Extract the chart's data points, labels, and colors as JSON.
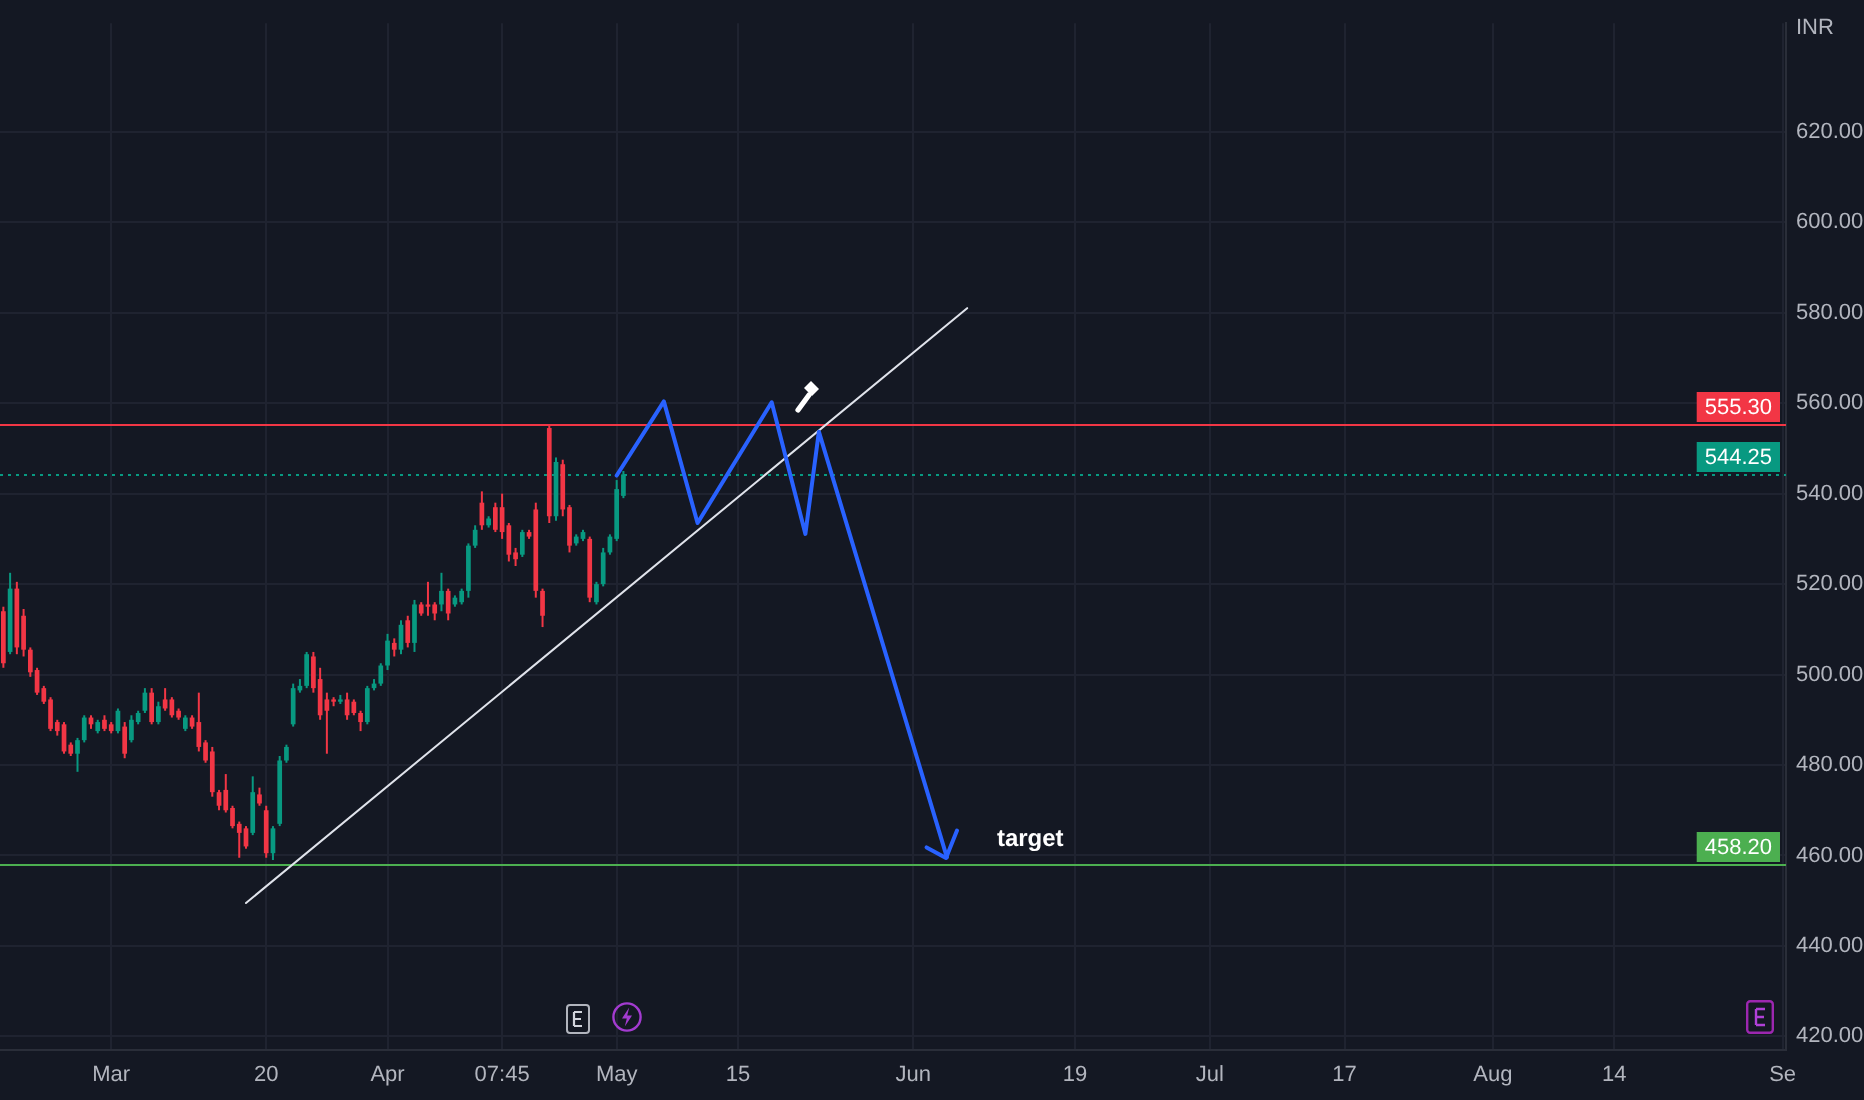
{
  "chart_data": {
    "type": "candlestick",
    "ylabel": "INR",
    "categories": [
      null,
      null,
      null,
      null,
      null,
      null,
      null,
      null,
      null,
      null,
      null,
      null,
      null,
      null,
      null,
      null,
      "Mar",
      null,
      null,
      null,
      null,
      null,
      null,
      null,
      null,
      null,
      null,
      null,
      null,
      null,
      null,
      null,
      null,
      null,
      null,
      null,
      null,
      null,
      null,
      "20",
      null,
      null,
      null,
      null,
      null,
      null,
      null,
      null,
      null,
      null,
      null,
      null,
      null,
      null,
      null,
      null,
      null,
      "Apr",
      null,
      null,
      null,
      null,
      null,
      null,
      null,
      null,
      null,
      null,
      null,
      null,
      null,
      null,
      null,
      null,
      "07:45",
      null,
      null,
      null,
      null,
      null,
      null,
      null,
      null,
      null,
      null,
      null,
      null,
      null,
      null,
      null,
      null,
      "May",
      null,
      null,
      null,
      null,
      null,
      null,
      null,
      null,
      null,
      null,
      null,
      null,
      null,
      null,
      null,
      null,
      null,
      "15",
      null,
      null,
      null,
      null,
      null,
      null,
      null,
      null,
      null,
      null,
      null,
      null,
      null,
      null,
      null,
      null,
      null,
      null,
      null,
      null,
      null,
      null,
      null,
      null,
      null,
      "Jun",
      null,
      null,
      null,
      null,
      null,
      null,
      null,
      null,
      null,
      null,
      null,
      null,
      null,
      null,
      null,
      null,
      null,
      null,
      null,
      null,
      null,
      null,
      null,
      "19",
      null,
      null,
      null,
      null,
      null,
      null,
      null,
      null,
      null,
      null,
      null,
      null,
      null,
      null,
      null,
      null,
      null,
      null,
      null,
      "Jul",
      null,
      null,
      null,
      null,
      null,
      null,
      null,
      null,
      null,
      null,
      null,
      null,
      null,
      null,
      null,
      null,
      null,
      null,
      null,
      "17",
      null,
      null,
      null,
      null,
      null,
      null,
      null,
      null,
      null,
      null,
      null,
      null,
      null,
      null,
      null,
      null,
      null,
      null,
      null,
      null,
      null,
      "Aug",
      null,
      null,
      null,
      null,
      null,
      null,
      null,
      null,
      null,
      null,
      null,
      null,
      null,
      null,
      null,
      null,
      null,
      "14",
      null,
      null,
      null,
      null,
      null,
      null,
      null,
      null,
      null,
      null,
      null,
      null,
      null,
      null,
      null,
      null,
      null,
      null,
      null,
      null,
      null,
      null,
      null,
      null,
      "Se"
    ],
    "ohlc": [
      [
        514,
        515,
        501.5,
        502.5
      ],
      [
        505,
        522.5,
        504.5,
        519
      ],
      [
        519,
        520.5,
        504.5,
        506
      ],
      [
        513,
        514.5,
        504,
        505.5
      ],
      [
        505.5,
        506,
        499.5,
        500.5
      ],
      [
        501,
        501.5,
        495.5,
        496
      ],
      [
        497,
        497.5,
        493.5,
        494
      ],
      [
        494.5,
        495,
        487.5,
        488
      ],
      [
        489.5,
        490,
        486.5,
        487.5
      ],
      [
        489,
        489.5,
        482.5,
        483
      ],
      [
        484.5,
        485,
        482,
        482.5
      ],
      [
        482.5,
        486,
        478.5,
        485.5
      ],
      [
        485.5,
        491,
        485,
        490.5
      ],
      [
        490.5,
        491,
        488,
        489
      ],
      [
        487.5,
        490,
        487,
        489.5
      ],
      [
        490,
        491,
        487.5,
        488
      ],
      [
        489,
        489.5,
        487,
        487.5
      ],
      [
        487.5,
        492.5,
        487,
        492
      ],
      [
        488.5,
        489.5,
        481.5,
        482.5
      ],
      [
        485.5,
        491,
        485,
        490
      ],
      [
        489.5,
        492,
        489,
        491.5
      ],
      [
        492,
        497,
        491.5,
        496
      ],
      [
        496,
        497,
        489,
        489.5
      ],
      [
        489.5,
        494,
        489,
        493
      ],
      [
        494.5,
        497,
        492,
        492.5
      ],
      [
        494.5,
        495,
        490.5,
        491
      ],
      [
        492,
        492.5,
        490,
        490.5
      ],
      [
        488,
        491,
        487.5,
        490.5
      ],
      [
        490.5,
        491,
        488,
        488.5
      ],
      [
        489.5,
        496,
        483,
        484
      ],
      [
        485,
        485.5,
        480.5,
        481
      ],
      [
        483,
        484,
        473,
        474
      ],
      [
        474,
        474.5,
        470,
        471
      ],
      [
        474.5,
        478,
        469.5,
        470
      ],
      [
        470.5,
        471,
        466,
        466.5
      ],
      [
        467,
        467.5,
        459.5,
        465
      ],
      [
        466,
        466.5,
        461.5,
        462
      ],
      [
        465,
        477.5,
        464.5,
        474
      ],
      [
        473.5,
        475,
        471,
        471.5
      ],
      [
        470,
        471,
        459.5,
        460.5
      ],
      [
        460.5,
        466.5,
        459,
        466
      ],
      [
        467,
        482,
        466.5,
        481
      ],
      [
        481,
        484.5,
        480.5,
        484
      ],
      [
        489,
        498,
        488.5,
        497
      ],
      [
        496.5,
        499,
        496,
        497.5
      ],
      [
        497.5,
        505,
        497,
        504.5
      ],
      [
        504,
        505,
        496,
        497
      ],
      [
        499,
        501.5,
        490,
        491
      ],
      [
        494.5,
        496,
        482.5,
        492
      ],
      [
        494.5,
        495,
        493,
        494
      ],
      [
        494,
        495.5,
        493.5,
        494.5
      ],
      [
        494.5,
        496,
        490,
        491
      ],
      [
        494,
        494.5,
        491,
        491.5
      ],
      [
        491.5,
        492,
        487.5,
        489.5
      ],
      [
        489.5,
        497.5,
        489,
        497
      ],
      [
        497,
        499,
        496.5,
        498
      ],
      [
        498,
        502.5,
        497.5,
        502
      ],
      [
        502,
        509,
        501,
        507.5
      ],
      [
        507,
        508,
        504,
        505.5
      ],
      [
        505.5,
        512,
        504.5,
        511
      ],
      [
        512,
        513,
        506,
        507
      ],
      [
        507,
        516.5,
        505,
        515.5
      ],
      [
        515.5,
        516,
        513,
        513.5
      ],
      [
        515.5,
        520.5,
        513,
        515
      ],
      [
        515.5,
        516,
        512,
        513.5
      ],
      [
        515.5,
        522.5,
        514,
        518.5
      ],
      [
        518.5,
        519,
        512,
        513.5
      ],
      [
        515.5,
        517.5,
        515,
        517
      ],
      [
        516,
        519,
        515.5,
        518.5
      ],
      [
        518.5,
        529,
        517,
        528.5
      ],
      [
        528.5,
        533,
        528,
        532
      ],
      [
        538,
        540.5,
        532,
        533
      ],
      [
        533,
        535,
        532.5,
        534.5
      ],
      [
        537,
        538,
        531.5,
        532
      ],
      [
        537,
        540,
        530,
        531.5
      ],
      [
        533,
        533.5,
        525,
        526.5
      ],
      [
        527,
        528,
        524,
        525.5
      ],
      [
        526.5,
        532,
        526,
        531.5
      ],
      [
        531.5,
        532,
        530,
        530.5
      ],
      [
        536.5,
        538,
        517,
        518.5
      ],
      [
        518.5,
        519,
        510.5,
        513
      ],
      [
        554.5,
        555.3,
        533.5,
        535
      ],
      [
        535,
        548,
        534,
        547
      ],
      [
        546.5,
        547.5,
        535,
        536.5
      ],
      [
        537,
        537.5,
        527,
        528.5
      ],
      [
        529,
        531,
        528.5,
        530.5
      ],
      [
        530,
        532,
        529.5,
        531.5
      ],
      [
        530,
        530.5,
        516,
        517
      ],
      [
        516,
        520.5,
        515.5,
        520
      ],
      [
        520,
        528,
        519.5,
        527
      ],
      [
        527,
        531,
        526.5,
        530.5
      ],
      [
        530,
        543,
        529.5,
        541
      ],
      [
        539.5,
        545,
        539,
        544.25
      ],
      null,
      null,
      null,
      null,
      null,
      null,
      null,
      null,
      null,
      null,
      null,
      null,
      null,
      null,
      null,
      null,
      null,
      null,
      null,
      null,
      null,
      null,
      null,
      null,
      null,
      null,
      null,
      null,
      null,
      null,
      null,
      null,
      null,
      null,
      null,
      null,
      null,
      null,
      null,
      null,
      null,
      null,
      null,
      null,
      null,
      null,
      null,
      null,
      null,
      null,
      null,
      null,
      null,
      null,
      null,
      null,
      null,
      null,
      null,
      null,
      null,
      null,
      null,
      null,
      null,
      null,
      null,
      null,
      null,
      null,
      null,
      null,
      null,
      null,
      null,
      null,
      null,
      null,
      null,
      null,
      null,
      null,
      null,
      null,
      null,
      null,
      null,
      null,
      null,
      null,
      null,
      null,
      null,
      null,
      null,
      null,
      null,
      null,
      null,
      null,
      null,
      null,
      null,
      null,
      null,
      null,
      null,
      null,
      null,
      null,
      null,
      null,
      null,
      null,
      null,
      null,
      null,
      null,
      null,
      null,
      null,
      null,
      null,
      null,
      null,
      null,
      null,
      null,
      null,
      null,
      null,
      null,
      null,
      null,
      null,
      null,
      null,
      null,
      null,
      null,
      null,
      null,
      null,
      null,
      null,
      null,
      null,
      null,
      null,
      null,
      null,
      null,
      null,
      null,
      null,
      null,
      null,
      null,
      null,
      null,
      null,
      null,
      null,
      null,
      null,
      null,
      null,
      null,
      null,
      null,
      null,
      null
    ],
    "colors": [
      "#f23645",
      "#089981",
      "#f23645",
      "#f23645",
      "#f23645",
      "#f23645",
      "#f23645",
      "#f23645",
      "#f23645",
      "#f23645",
      "#f23645",
      "#089981",
      "#089981",
      "#f23645",
      "#089981",
      "#f23645",
      "#f23645",
      "#089981",
      "#f23645",
      "#089981",
      "#089981",
      "#089981",
      "#f23645",
      "#089981",
      "#f23645",
      "#f23645",
      "#f23645",
      "#089981",
      "#f23645",
      "#f23645",
      "#f23645",
      "#f23645",
      "#f23645",
      "#f23645",
      "#f23645",
      "#f23645",
      "#f23645",
      "#089981",
      "#f23645",
      "#f23645",
      "#089981",
      "#089981",
      "#089981",
      "#089981",
      "#089981",
      "#089981",
      "#f23645",
      "#f23645",
      "#f23645",
      "#f23645",
      "#089981",
      "#f23645",
      "#f23645",
      "#f23645",
      "#089981",
      "#089981",
      "#089981",
      "#089981",
      "#f23645",
      "#089981",
      "#f23645",
      "#089981",
      "#f23645",
      "#f23645",
      "#f23645",
      "#089981",
      "#f23645",
      "#089981",
      "#089981",
      "#089981",
      "#089981",
      "#f23645",
      "#089981",
      "#f23645",
      "#f23645",
      "#f23645",
      "#f23645",
      "#089981",
      "#f23645",
      "#f23645",
      "#f23645",
      "#f23645",
      "#089981",
      "#f23645",
      "#f23645",
      "#089981",
      "#089981",
      "#f23645",
      "#089981",
      "#089981",
      "#089981",
      "#089981",
      "#089981",
      null,
      null,
      null,
      null,
      null,
      null,
      null,
      null,
      null,
      null,
      null,
      null,
      null,
      null,
      null,
      null,
      null,
      null,
      null,
      null,
      null,
      null,
      null,
      null,
      null,
      null,
      null,
      null,
      null,
      null,
      null,
      null,
      null,
      null,
      null,
      null,
      null,
      null,
      null,
      null,
      null,
      null,
      null,
      null,
      null,
      null,
      null,
      null,
      null,
      null,
      null,
      null,
      null,
      null,
      null,
      null,
      null,
      null,
      null,
      null,
      null,
      null,
      null,
      null,
      null,
      null,
      null,
      null,
      null,
      null,
      null,
      null,
      null,
      null,
      null,
      null,
      null,
      null,
      null,
      null,
      null,
      null,
      null,
      null,
      null,
      null,
      null,
      null,
      null,
      null,
      null,
      null,
      null,
      null,
      null,
      null,
      null,
      null,
      null,
      null,
      null,
      null,
      null,
      null,
      null,
      null,
      null,
      null,
      null,
      null,
      null,
      null,
      null,
      null,
      null,
      null,
      null,
      null,
      null,
      null,
      null,
      null,
      null,
      null,
      null,
      null,
      null,
      null,
      null,
      null,
      null,
      null,
      null,
      null,
      null,
      null,
      null,
      null,
      null,
      null,
      null,
      null,
      null,
      null,
      null,
      null,
      null,
      null,
      null,
      null,
      null,
      null,
      null,
      null,
      null,
      null,
      null,
      null,
      null,
      null,
      null,
      null,
      null,
      null,
      null,
      null,
      null,
      null,
      null,
      null,
      null,
      null
    ],
    "series": [
      {
        "type": "line",
        "color": "#2962ff",
        "values": [
          null,
          null,
          null,
          null,
          null,
          null,
          null,
          null,
          null,
          null,
          null,
          null,
          null,
          null,
          null,
          null,
          null,
          null,
          null,
          null,
          null,
          null,
          null,
          null,
          null,
          null,
          null,
          null,
          null,
          null,
          null,
          null,
          null,
          null,
          null,
          null,
          null,
          null,
          null,
          null,
          null,
          null,
          null,
          null,
          null,
          null,
          null,
          null,
          null,
          null,
          null,
          null,
          null,
          null,
          null,
          null,
          null,
          null,
          null,
          null,
          null,
          null,
          null,
          null,
          null,
          null,
          null,
          null,
          null,
          null,
          null,
          null,
          null,
          null,
          null,
          null,
          null,
          null,
          null,
          null,
          null,
          null,
          null,
          null,
          null,
          null,
          null,
          null,
          null,
          null,
          null,
          544,
          null,
          null,
          null,
          null,
          null,
          null,
          560.4,
          null,
          null,
          null,
          null,
          533.5,
          null,
          null,
          null,
          null,
          null,
          null,
          null,
          null,
          null,
          null,
          560.2,
          null,
          null,
          null,
          null,
          531.1,
          null,
          553.7,
          null,
          null,
          null,
          null,
          null,
          null,
          null,
          null,
          null,
          null,
          null,
          null,
          null,
          null,
          null,
          null,
          null,
          null,
          459.6,
          null,
          null,
          null,
          null,
          null,
          null,
          null,
          null,
          null,
          null,
          null,
          null,
          null,
          null,
          null,
          null,
          null,
          null,
          null,
          null,
          null,
          null,
          null,
          null,
          null,
          null,
          null,
          null,
          null,
          null,
          null,
          null,
          null,
          null,
          null,
          null,
          null,
          null,
          null,
          null,
          null,
          null,
          null,
          null,
          null,
          null,
          null,
          null,
          null,
          null,
          null,
          null,
          null,
          null,
          null,
          null,
          null,
          null,
          null,
          null,
          null,
          null,
          null,
          null,
          null,
          null,
          null,
          null,
          null,
          null,
          null,
          null,
          null,
          null,
          null,
          null,
          null,
          null,
          null,
          null,
          null,
          null,
          null,
          null,
          null,
          null,
          null,
          null,
          null,
          null,
          null,
          null,
          null,
          null,
          null,
          null,
          null,
          null,
          null,
          null,
          null,
          null,
          null,
          null,
          null,
          null,
          null,
          null,
          null,
          null,
          null,
          null,
          null,
          null,
          null,
          null,
          null,
          null,
          null,
          null,
          null,
          null,
          null,
          null
        ]
      },
      {
        "type": "line",
        "color": "#e0e3eb",
        "values": [
          null,
          null,
          null,
          null,
          null,
          null,
          null,
          null,
          null,
          null,
          null,
          null,
          null,
          null,
          null,
          null,
          null,
          null,
          null,
          null,
          null,
          null,
          null,
          null,
          null,
          null,
          null,
          null,
          null,
          null,
          null,
          null,
          null,
          null,
          null,
          null,
          449.5,
          null,
          null,
          null,
          null,
          null,
          null,
          null,
          null,
          null,
          null,
          null,
          null,
          null,
          null,
          null,
          null,
          null,
          null,
          null,
          null,
          null,
          null,
          null,
          null,
          null,
          null,
          null,
          null,
          null,
          null,
          null,
          null,
          null,
          null,
          null,
          null,
          null,
          null,
          null,
          null,
          null,
          null,
          null,
          null,
          null,
          null,
          null,
          null,
          null,
          null,
          null,
          null,
          null,
          null,
          null,
          null,
          null,
          null,
          null,
          null,
          null,
          null,
          null,
          null,
          null,
          null,
          null,
          null,
          null,
          null,
          null,
          null,
          null,
          null,
          null,
          null,
          null,
          null,
          null,
          null,
          null,
          null,
          null,
          null,
          null,
          null,
          null,
          null,
          null,
          null,
          null,
          null,
          null,
          null,
          null,
          null,
          null,
          null,
          null,
          null,
          null,
          null,
          null,
          null,
          null,
          null,
          581,
          null,
          null,
          null,
          null,
          null,
          null,
          null,
          null,
          null,
          null,
          null,
          null,
          null,
          null,
          null,
          null,
          null,
          null,
          null,
          null,
          null,
          null,
          null,
          null,
          null,
          null,
          null,
          null,
          null,
          null,
          null,
          null,
          null,
          null,
          null,
          null,
          null,
          null,
          null,
          null,
          null,
          null,
          null,
          null,
          null,
          null,
          null,
          null,
          null,
          null,
          null,
          null,
          null,
          null,
          null,
          null,
          null,
          null,
          null,
          null,
          null,
          null,
          null,
          null,
          null,
          null,
          null,
          null,
          null,
          null,
          null,
          null,
          null,
          null,
          null,
          null,
          null,
          null,
          null,
          null,
          null,
          null,
          null,
          null,
          null,
          null,
          null,
          null,
          null,
          null,
          null,
          null,
          null,
          null,
          null,
          null,
          null,
          null,
          null,
          null,
          null,
          null,
          null,
          null,
          null,
          null,
          null,
          null,
          null,
          null,
          null,
          null,
          null,
          null,
          null,
          null,
          null,
          null,
          null,
          null,
          null
        ]
      }
    ],
    "ref_lines": [
      {
        "axis": "y",
        "value": 555.3,
        "label": "555.30",
        "color": "#f23645"
      },
      {
        "axis": "y",
        "value": 544.25,
        "label": "544.25",
        "color": "#089981",
        "line_style": "dotted"
      },
      {
        "axis": "y",
        "value": 458.2,
        "label": "458.20",
        "color": "#4caf50"
      }
    ],
    "annotations": [
      "target"
    ],
    "ylim": [
      417,
      644
    ],
    "yticks": [
      {
        "value": 420,
        "label": "420.00"
      },
      {
        "value": 440,
        "label": "440.00"
      },
      {
        "value": 460,
        "label": "460.00"
      },
      {
        "value": 480,
        "label": "480.00"
      },
      {
        "value": 500,
        "label": "500.00"
      },
      {
        "value": 520,
        "label": "520.00"
      },
      {
        "value": 540,
        "label": "540.00"
      },
      {
        "value": 560,
        "label": "560.00"
      },
      {
        "value": 580,
        "label": "580.00"
      },
      {
        "value": 600,
        "label": "600.00"
      },
      {
        "value": 620,
        "label": "620.00"
      }
    ],
    "grid": true
  }
}
